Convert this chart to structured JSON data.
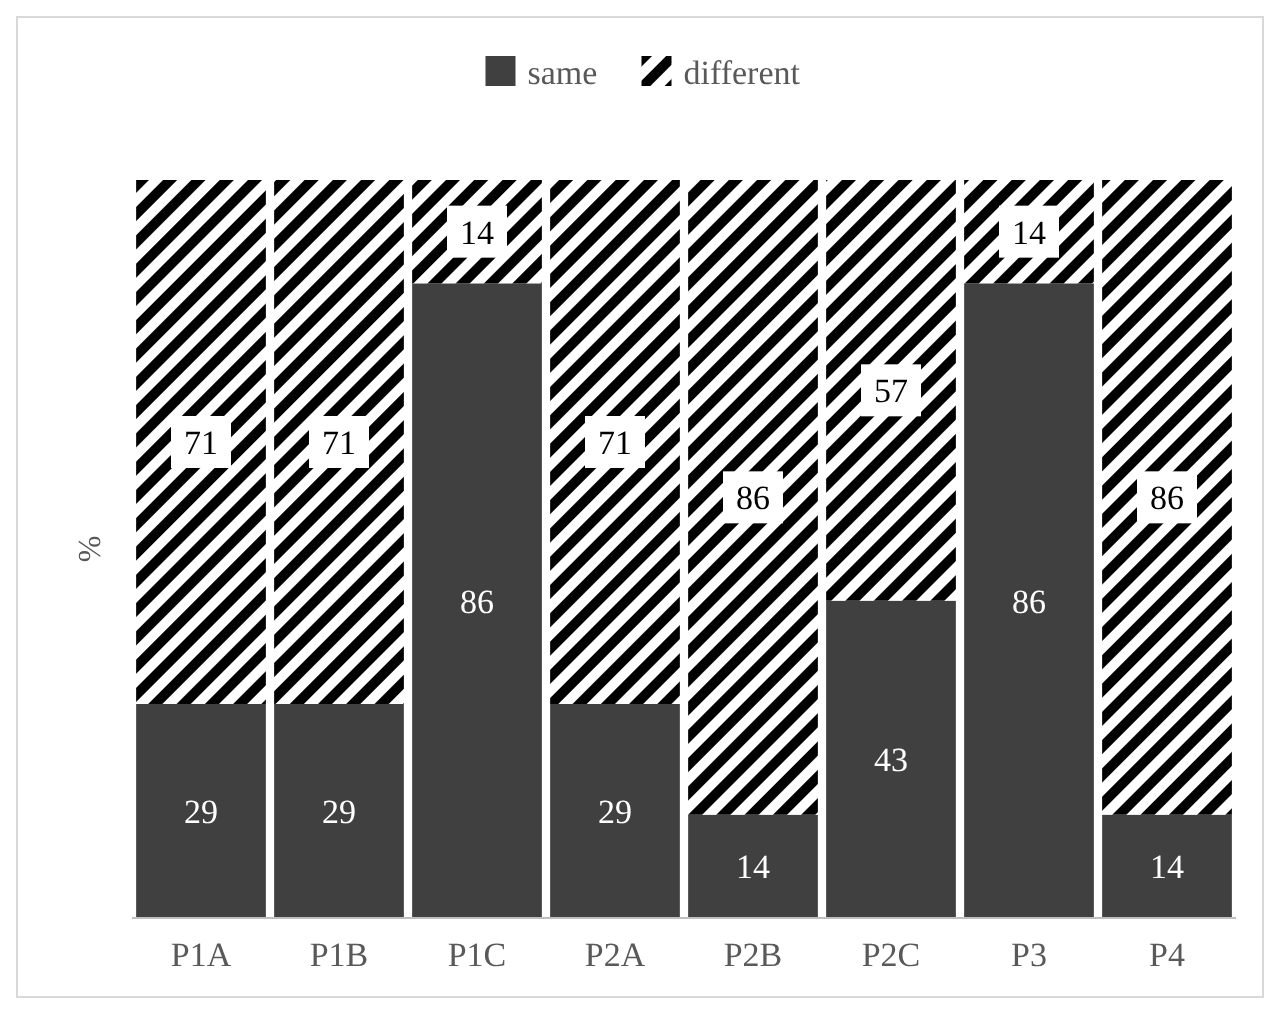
{
  "chart_data": {
    "type": "bar",
    "stacked": true,
    "ylabel": "%",
    "categories": [
      "P1A",
      "P1B",
      "P1C",
      "P2A",
      "P2B",
      "P2C",
      "P3",
      "P4"
    ],
    "series": [
      {
        "name": "same",
        "color": "#404040",
        "values": [
          29,
          29,
          86,
          29,
          14,
          43,
          86,
          14
        ]
      },
      {
        "name": "different",
        "color": "#000000",
        "values": [
          71,
          71,
          14,
          71,
          86,
          57,
          14,
          86
        ]
      }
    ],
    "data_labels": true,
    "legend": "top",
    "grid": false
  }
}
